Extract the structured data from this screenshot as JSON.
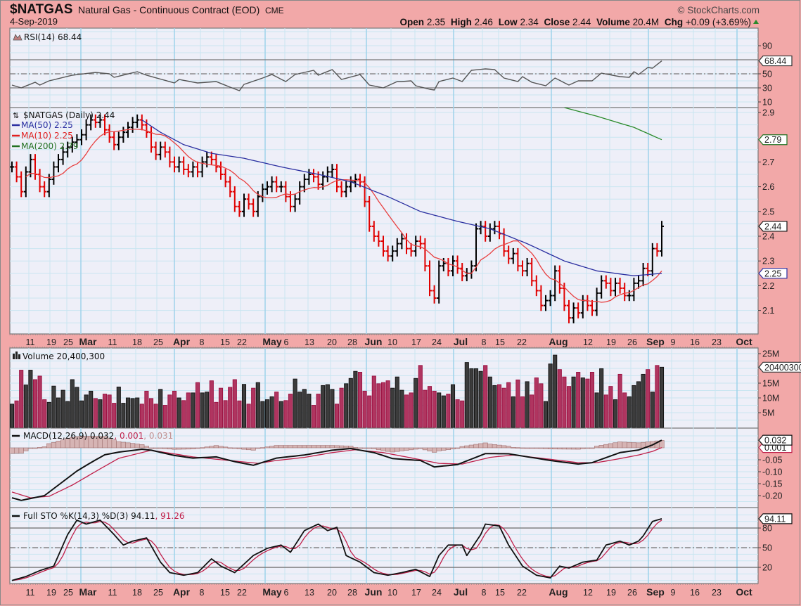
{
  "header": {
    "symbol": "$NATGAS",
    "name": "Natural Gas - Continuous Contract (EOD)",
    "exchange": "CME",
    "date": "4-Sep-2019",
    "copyright": "© StockCharts.com",
    "open_label": "Open",
    "open": "2.35",
    "high_label": "High",
    "high": "2.46",
    "low_label": "Low",
    "low": "2.34",
    "close_label": "Close",
    "close": "2.44",
    "volume_label": "Volume",
    "volume": "20.4M",
    "chg_label": "Chg",
    "chg": "+0.09 (+3.69%)",
    "chg_direction": "up"
  },
  "colors": {
    "background": "#f2a8a8",
    "plot": "#eeeff8",
    "up": "#000000",
    "down": "#e00000",
    "ma50": "#2a2ea0",
    "ma10": "#e84040",
    "ma200": "#2a8a2a",
    "vol_up": "#3c3c3c",
    "vol_down": "#b03560",
    "signal": "#c0204a",
    "histogram": "#c8a0a0"
  },
  "legends": {
    "rsi": "RSI(14) 68.44",
    "price": "$NATGAS (Daily) 2.44",
    "ma50": "MA(50) 2.25",
    "ma10": "MA(10) 2.25",
    "ma200": "MA(200) 2.79",
    "volume": "Volume 20,400,300",
    "macd_name": "MACD(12,26,9) 0.032",
    "macd_signal": ", 0.001",
    "macd_hist": ", 0.031",
    "sto_name": "Full STO %K(14,3) %D(3) 94.11",
    "sto_d": ", 91.26"
  },
  "chart_data": [
    {
      "panel": "rsi",
      "type": "line",
      "ticks": [
        "90",
        "50",
        "30",
        "10"
      ],
      "last_tag": "68.44",
      "reference_lines": [
        70,
        50,
        30
      ],
      "series_points": [
        [
          0,
          34
        ],
        [
          2,
          30
        ],
        [
          5,
          38
        ],
        [
          6,
          34
        ],
        [
          8,
          40
        ],
        [
          13,
          48
        ],
        [
          18,
          52
        ],
        [
          21,
          50
        ],
        [
          22,
          45
        ],
        [
          27,
          53
        ],
        [
          29,
          48
        ],
        [
          35,
          37
        ],
        [
          36,
          42
        ],
        [
          40,
          37
        ],
        [
          44,
          39
        ],
        [
          47,
          31
        ],
        [
          49,
          26
        ],
        [
          50,
          35
        ],
        [
          54,
          44
        ],
        [
          56,
          49
        ],
        [
          59,
          39
        ],
        [
          61,
          49
        ],
        [
          65,
          55
        ],
        [
          66,
          48
        ],
        [
          69,
          56
        ],
        [
          71,
          42
        ],
        [
          75,
          49
        ],
        [
          77,
          34
        ],
        [
          80,
          30
        ],
        [
          83,
          39
        ],
        [
          84,
          39
        ],
        [
          86,
          40
        ],
        [
          87,
          33
        ],
        [
          90,
          28
        ],
        [
          91,
          27
        ],
        [
          92,
          39
        ],
        [
          95,
          44
        ],
        [
          97,
          39
        ],
        [
          99,
          55
        ],
        [
          102,
          57
        ],
        [
          104,
          56
        ],
        [
          106,
          44
        ],
        [
          109,
          39
        ],
        [
          110,
          46
        ],
        [
          112,
          38
        ],
        [
          115,
          33
        ],
        [
          117,
          44
        ],
        [
          120,
          34
        ],
        [
          122,
          40
        ],
        [
          125,
          40
        ],
        [
          127,
          51
        ],
        [
          131,
          46
        ],
        [
          133,
          45
        ],
        [
          134,
          53
        ],
        [
          135,
          49
        ],
        [
          137,
          59
        ],
        [
          138,
          58
        ],
        [
          140,
          68.44
        ]
      ]
    },
    {
      "panel": "price",
      "type": "ohlc-bar",
      "ticks": [
        "2.9",
        "2.7",
        "2.6",
        "2.5",
        "2.4",
        "2.3",
        "2.2",
        "2.1"
      ],
      "tags": {
        "close": "2.44",
        "ma": "2.25",
        "ma200": "2.79"
      },
      "close": [
        2.68,
        2.64,
        2.58,
        2.66,
        2.71,
        2.65,
        2.6,
        2.58,
        2.63,
        2.68,
        2.71,
        2.74,
        2.76,
        2.78,
        2.79,
        2.81,
        2.85,
        2.87,
        2.86,
        2.87,
        2.83,
        2.8,
        2.77,
        2.8,
        2.82,
        2.84,
        2.86,
        2.87,
        2.85,
        2.82,
        2.76,
        2.73,
        2.76,
        2.74,
        2.7,
        2.68,
        2.7,
        2.67,
        2.66,
        2.68,
        2.66,
        2.7,
        2.72,
        2.71,
        2.68,
        2.65,
        2.62,
        2.58,
        2.52,
        2.5,
        2.55,
        2.53,
        2.5,
        2.56,
        2.59,
        2.6,
        2.62,
        2.6,
        2.6,
        2.56,
        2.52,
        2.55,
        2.6,
        2.63,
        2.65,
        2.64,
        2.61,
        2.64,
        2.66,
        2.67,
        2.6,
        2.58,
        2.6,
        2.62,
        2.63,
        2.62,
        2.54,
        2.44,
        2.4,
        2.38,
        2.34,
        2.32,
        2.34,
        2.37,
        2.39,
        2.35,
        2.34,
        2.38,
        2.37,
        2.28,
        2.18,
        2.15,
        2.28,
        2.29,
        2.26,
        2.3,
        2.27,
        2.24,
        2.25,
        2.28,
        2.43,
        2.44,
        2.4,
        2.43,
        2.44,
        2.41,
        2.34,
        2.31,
        2.33,
        2.28,
        2.26,
        2.29,
        2.22,
        2.18,
        2.12,
        2.14,
        2.16,
        2.26,
        2.19,
        2.12,
        2.07,
        2.11,
        2.09,
        2.14,
        2.12,
        2.1,
        2.17,
        2.22,
        2.21,
        2.18,
        2.21,
        2.19,
        2.16,
        2.16,
        2.21,
        2.22,
        2.27,
        2.26,
        2.35,
        2.34,
        2.44
      ],
      "ma50_points": [
        [
          28,
          2.87
        ],
        [
          32,
          2.82
        ],
        [
          37,
          2.77
        ],
        [
          43,
          2.735
        ],
        [
          50,
          2.715
        ],
        [
          58,
          2.68
        ],
        [
          66,
          2.65
        ],
        [
          73,
          2.62
        ],
        [
          81,
          2.56
        ],
        [
          88,
          2.5
        ],
        [
          96,
          2.46
        ],
        [
          103,
          2.43
        ],
        [
          111,
          2.37
        ],
        [
          119,
          2.3
        ],
        [
          126,
          2.26
        ],
        [
          134,
          2.24
        ],
        [
          140,
          2.25
        ]
      ],
      "ma200_points": [
        [
          119,
          2.92
        ],
        [
          126,
          2.885
        ],
        [
          134,
          2.84
        ],
        [
          140,
          2.79
        ]
      ]
    },
    {
      "panel": "volume",
      "type": "bar",
      "ticks": [
        "25M",
        "15M",
        "10M",
        "5M"
      ],
      "last_tag": "20400300",
      "values_millions": [
        7.9,
        9,
        19.4,
        14.4,
        19.4,
        16.2,
        17.4,
        9.4,
        8.5,
        14,
        10,
        12.6,
        8.8,
        16.2,
        13.6,
        9,
        11,
        12.3,
        9.8,
        9.4,
        11.3,
        11,
        8.2,
        13.7,
        8.2,
        10,
        9.8,
        10,
        7.9,
        12.3,
        9.8,
        7.9,
        12.9,
        7.5,
        11,
        12.3,
        10,
        9.1,
        11.7,
        11.7,
        15.2,
        11.7,
        12,
        15.8,
        8.5,
        13.3,
        9.1,
        13.6,
        16.2,
        9,
        14.6,
        7.9,
        13.3,
        15.2,
        8.8,
        9.4,
        10.4,
        12,
        8.8,
        9.1,
        11.3,
        16.4,
        12,
        12.9,
        11.3,
        7.5,
        11.3,
        14.2,
        14.5,
        12.9,
        7.9,
        13.3,
        14.8,
        16.6,
        19,
        18.7,
        12.3,
        10.7,
        17.4,
        14.8,
        15.2,
        15.8,
        13.3,
        17.1,
        12.6,
        11,
        11.7,
        16.6,
        21,
        12.6,
        13.9,
        12.3,
        11.7,
        10.7,
        11.3,
        14.5,
        9.4,
        9,
        22,
        19.9,
        19.9,
        19,
        21,
        17.1,
        14.2,
        14.5,
        13.3,
        15.2,
        10.4,
        16.1,
        10.4,
        15.5,
        11,
        16.8,
        14.8,
        8.8,
        21.5,
        24.5,
        19.6,
        17.1,
        13.9,
        17.1,
        18.7,
        16.8,
        16.4,
        18.7,
        11.7,
        19.9,
        11,
        13.9,
        9.4,
        18,
        11.7,
        10.4,
        14.2,
        15.5,
        18,
        19.6,
        12,
        21,
        20.4
      ]
    },
    {
      "panel": "macd",
      "type": "line",
      "ticks": [
        "-0.05",
        "-0.10",
        "-0.15",
        "-0.20"
      ],
      "tags": {
        "macd": "0.032",
        "signal": "0.001"
      },
      "macd_points": [
        [
          0,
          -0.209
        ],
        [
          2,
          -0.22
        ],
        [
          7,
          -0.2
        ],
        [
          10,
          -0.156
        ],
        [
          14,
          -0.097
        ],
        [
          17,
          -0.062
        ],
        [
          20,
          -0.029
        ],
        [
          23,
          -0.018
        ],
        [
          28,
          -0.006
        ],
        [
          30,
          -0.01
        ],
        [
          35,
          -0.032
        ],
        [
          39,
          -0.043
        ],
        [
          44,
          -0.038
        ],
        [
          48,
          -0.058
        ],
        [
          52,
          -0.073
        ],
        [
          57,
          -0.043
        ],
        [
          63,
          -0.03
        ],
        [
          69,
          -0.01
        ],
        [
          73,
          -0.003
        ],
        [
          78,
          -0.02
        ],
        [
          82,
          -0.045
        ],
        [
          88,
          -0.053
        ],
        [
          91,
          -0.08
        ],
        [
          96,
          -0.07
        ],
        [
          102,
          -0.024
        ],
        [
          107,
          -0.025
        ],
        [
          116,
          -0.053
        ],
        [
          122,
          -0.068
        ],
        [
          125,
          -0.062
        ],
        [
          131,
          -0.02
        ],
        [
          135,
          -0.009
        ],
        [
          138,
          0.012
        ],
        [
          140,
          0.032
        ]
      ],
      "signal_points": [
        [
          0,
          -0.185
        ],
        [
          4,
          -0.209
        ],
        [
          8,
          -0.203
        ],
        [
          13,
          -0.156
        ],
        [
          19,
          -0.088
        ],
        [
          23,
          -0.044
        ],
        [
          30,
          -0.01
        ],
        [
          39,
          -0.038
        ],
        [
          53,
          -0.065
        ],
        [
          57,
          -0.053
        ],
        [
          63,
          -0.04
        ],
        [
          69,
          -0.02
        ],
        [
          74,
          -0.008
        ],
        [
          80,
          -0.02
        ],
        [
          86,
          -0.042
        ],
        [
          92,
          -0.065
        ],
        [
          97,
          -0.068
        ],
        [
          103,
          -0.04
        ],
        [
          108,
          -0.03
        ],
        [
          116,
          -0.048
        ],
        [
          122,
          -0.062
        ],
        [
          126,
          -0.062
        ],
        [
          131,
          -0.045
        ],
        [
          135,
          -0.03
        ],
        [
          138,
          -0.015
        ],
        [
          140,
          0.001
        ]
      ]
    },
    {
      "panel": "stochastic",
      "type": "line",
      "ticks": [
        "80",
        "50",
        "20"
      ],
      "last_tag": "94.11",
      "reference_lines": [
        80,
        50,
        20
      ],
      "k_points": [
        [
          0,
          0
        ],
        [
          3,
          6
        ],
        [
          6,
          15
        ],
        [
          9,
          22
        ],
        [
          12,
          70
        ],
        [
          14,
          92
        ],
        [
          16,
          86
        ],
        [
          19,
          92
        ],
        [
          22,
          70
        ],
        [
          24,
          54
        ],
        [
          26,
          60
        ],
        [
          29,
          65
        ],
        [
          32,
          28
        ],
        [
          34,
          12
        ],
        [
          37,
          8
        ],
        [
          40,
          12
        ],
        [
          43,
          33
        ],
        [
          45,
          22
        ],
        [
          48,
          12
        ],
        [
          52,
          38
        ],
        [
          55,
          49
        ],
        [
          58,
          54
        ],
        [
          60,
          43
        ],
        [
          63,
          76
        ],
        [
          66,
          86
        ],
        [
          68,
          76
        ],
        [
          70,
          81
        ],
        [
          72,
          38
        ],
        [
          75,
          28
        ],
        [
          78,
          12
        ],
        [
          81,
          8
        ],
        [
          84,
          12
        ],
        [
          87,
          17
        ],
        [
          90,
          6
        ],
        [
          92,
          38
        ],
        [
          94,
          54
        ],
        [
          97,
          54
        ],
        [
          98,
          38
        ],
        [
          101,
          70
        ],
        [
          102,
          86
        ],
        [
          105,
          83
        ],
        [
          107,
          54
        ],
        [
          110,
          22
        ],
        [
          113,
          8
        ],
        [
          116,
          4
        ],
        [
          118,
          22
        ],
        [
          120,
          19
        ],
        [
          123,
          28
        ],
        [
          126,
          31
        ],
        [
          128,
          54
        ],
        [
          131,
          60
        ],
        [
          133,
          54
        ],
        [
          135,
          60
        ],
        [
          136,
          68
        ],
        [
          138,
          90
        ],
        [
          140,
          94.11
        ]
      ]
    }
  ],
  "x_axis": {
    "labels": [
      "11",
      "19",
      "25",
      "Mar",
      "11",
      "18",
      "25",
      "Apr",
      "8",
      "15",
      "22",
      "May",
      "6",
      "13",
      "20",
      "28",
      "Jun",
      "10",
      "17",
      "24",
      "Jul",
      "8",
      "15",
      "22",
      "Aug",
      "12",
      "19",
      "26",
      "Sep",
      "9",
      "16",
      "23",
      "Oct"
    ],
    "month_labels": [
      "Mar",
      "Apr",
      "May",
      "Jun",
      "Jul",
      "Aug",
      "Sep",
      "Oct"
    ]
  }
}
